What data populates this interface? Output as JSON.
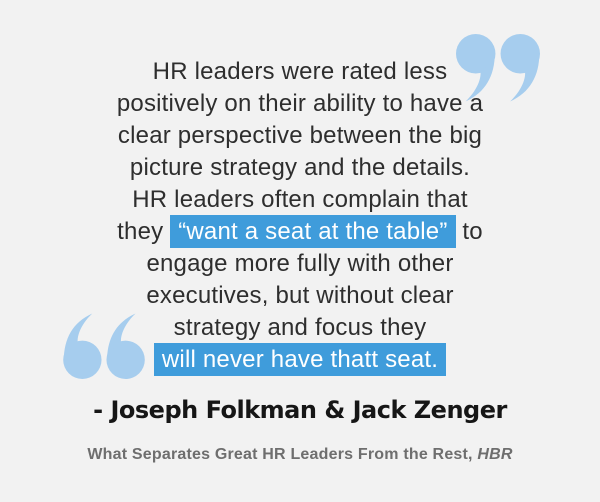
{
  "colors": {
    "page_bg": "#f2f2f2",
    "quote_text": "#2e2e2e",
    "highlight_bg": "#3f9cdb",
    "highlight_text": "#ffffff",
    "quote_mark": "#a6cdee",
    "attribution_text": "#161616",
    "source_text": "#6e6e6e"
  },
  "icons": {
    "top_right": "closing-quote-icon",
    "bottom_left": "opening-quote-icon"
  },
  "quote": {
    "lines": [
      [
        {
          "t": "HR leaders were rated less",
          "h": false
        }
      ],
      [
        {
          "t": "positively on their ability to have a",
          "h": false
        }
      ],
      [
        {
          "t": "clear perspective between the big",
          "h": false
        }
      ],
      [
        {
          "t": "picture strategy and the details.",
          "h": false
        }
      ],
      [
        {
          "t": "HR leaders often complain that",
          "h": false
        }
      ],
      [
        {
          "t": "they ",
          "h": false
        },
        {
          "t": "“want a seat at the table”",
          "h": true
        },
        {
          "t": " to",
          "h": false
        }
      ],
      [
        {
          "t": "engage more fully with other",
          "h": false
        }
      ],
      [
        {
          "t": "executives, but without clear",
          "h": false
        }
      ],
      [
        {
          "t": "strategy and focus they",
          "h": false
        }
      ],
      [
        {
          "t": "will never have thatt seat.",
          "h": true
        }
      ]
    ]
  },
  "attribution": {
    "text": "- Joseph Folkman & Jack Zenger"
  },
  "source": {
    "title": "What Separates Great HR Leaders From the Rest, ",
    "publication": "HBR"
  }
}
